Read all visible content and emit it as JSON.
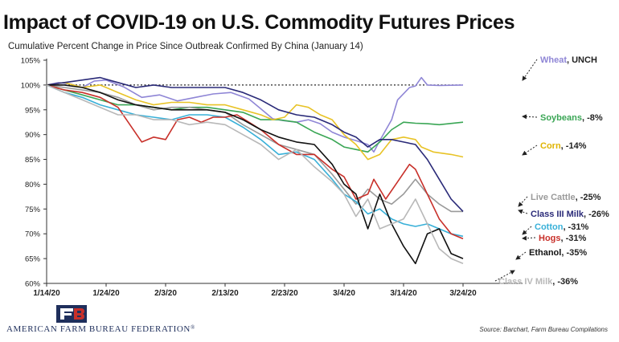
{
  "title": "Impact of COVID-19 on U.S. Commodity Futures Prices",
  "subtitle": "Cumulative Percent Change in Price Since Outbreak Confirmed By China (January 14)",
  "source": "Source: Barchart, Farm Bureau Compilations",
  "organization": "AMERICAN FARM BUREAU FEDERATION",
  "org_mark": "®",
  "logo_text": "FB",
  "chart_data": {
    "type": "line",
    "title": "Impact of COVID-19 on U.S. Commodity Futures Prices",
    "subtitle": "Cumulative Percent Change in Price Since Outbreak Confirmed By China (January 14)",
    "x_ticks": [
      "1/14/20",
      "1/24/20",
      "2/3/20",
      "2/13/20",
      "2/23/20",
      "3/4/20",
      "3/14/20",
      "3/24/20"
    ],
    "x_range_days": [
      0,
      80
    ],
    "y_ticks": [
      "60%",
      "65%",
      "70%",
      "75%",
      "80%",
      "85%",
      "90%",
      "95%",
      "100%",
      "105%"
    ],
    "ylim": [
      60,
      105
    ],
    "reference_line": 100,
    "grid": false,
    "series": [
      {
        "name": "Wheat",
        "label_value": "UNCH",
        "color": "#8f86d6",
        "points": [
          [
            0,
            100
          ],
          [
            2,
            100.5
          ],
          [
            4,
            100.2
          ],
          [
            6,
            99.5
          ],
          [
            8,
            100.8
          ],
          [
            10,
            101
          ],
          [
            13,
            99.6
          ],
          [
            16,
            97.5
          ],
          [
            19,
            98
          ],
          [
            22,
            96.8
          ],
          [
            25,
            97.5
          ],
          [
            28,
            98.2
          ],
          [
            31,
            98.5
          ],
          [
            34,
            97.2
          ],
          [
            36,
            95.2
          ],
          [
            38,
            93.2
          ],
          [
            40,
            92.8
          ],
          [
            42,
            92.5
          ],
          [
            44,
            93
          ],
          [
            46,
            92.2
          ],
          [
            48,
            90.5
          ],
          [
            50,
            89.5
          ],
          [
            52,
            88.8
          ],
          [
            54,
            88
          ],
          [
            55,
            86.5
          ],
          [
            56,
            88.8
          ],
          [
            58,
            93
          ],
          [
            59,
            97
          ],
          [
            61,
            99.5
          ],
          [
            62,
            99.8
          ],
          [
            63,
            101.5
          ],
          [
            64,
            100
          ],
          [
            66,
            99.9
          ],
          [
            70,
            100
          ]
        ]
      },
      {
        "name": "Soybeans",
        "label_value": "-8%",
        "color": "#3aa655",
        "points": [
          [
            0,
            100
          ],
          [
            3,
            99
          ],
          [
            6,
            98
          ],
          [
            9,
            97
          ],
          [
            12,
            96
          ],
          [
            15,
            96
          ],
          [
            18,
            95.5
          ],
          [
            21,
            95
          ],
          [
            24,
            95.5
          ],
          [
            27,
            95.5
          ],
          [
            30,
            95
          ],
          [
            33,
            94.5
          ],
          [
            36,
            93
          ],
          [
            39,
            93
          ],
          [
            42,
            92.5
          ],
          [
            45,
            90.5
          ],
          [
            48,
            89
          ],
          [
            50,
            87.5
          ],
          [
            52,
            87
          ],
          [
            54,
            86.5
          ],
          [
            56,
            88.5
          ],
          [
            58,
            91
          ],
          [
            60,
            92.5
          ],
          [
            62,
            92.3
          ],
          [
            64,
            92.2
          ],
          [
            66,
            92
          ],
          [
            70,
            92.5
          ]
        ]
      },
      {
        "name": "Corn",
        "label_value": "-14%",
        "color": "#e8c326",
        "points": [
          [
            0,
            100
          ],
          [
            3,
            100.5
          ],
          [
            6,
            99.5
          ],
          [
            9,
            100
          ],
          [
            12,
            98.5
          ],
          [
            15,
            97
          ],
          [
            18,
            96
          ],
          [
            21,
            96.5
          ],
          [
            24,
            96.5
          ],
          [
            27,
            96
          ],
          [
            30,
            96
          ],
          [
            33,
            95
          ],
          [
            36,
            94
          ],
          [
            38,
            93
          ],
          [
            40,
            93.5
          ],
          [
            42,
            96
          ],
          [
            44,
            95.5
          ],
          [
            46,
            94
          ],
          [
            48,
            93
          ],
          [
            50,
            90
          ],
          [
            52,
            88
          ],
          [
            54,
            85
          ],
          [
            56,
            86
          ],
          [
            58,
            89
          ],
          [
            60,
            89.5
          ],
          [
            62,
            89
          ],
          [
            63,
            87.5
          ],
          [
            65,
            86.5
          ],
          [
            68,
            86
          ],
          [
            70,
            85.5
          ]
        ]
      },
      {
        "name": "Live Cattle",
        "label_value": "-25%",
        "color": "#9a9a9a",
        "points": [
          [
            0,
            100
          ],
          [
            3,
            99.5
          ],
          [
            6,
            99
          ],
          [
            9,
            98.5
          ],
          [
            12,
            97.5
          ],
          [
            15,
            96
          ],
          [
            18,
            95
          ],
          [
            21,
            95.5
          ],
          [
            24,
            95.5
          ],
          [
            27,
            95
          ],
          [
            30,
            94.5
          ],
          [
            33,
            92
          ],
          [
            36,
            90
          ],
          [
            39,
            88
          ],
          [
            42,
            87
          ],
          [
            45,
            86
          ],
          [
            48,
            82
          ],
          [
            50,
            79
          ],
          [
            52,
            76
          ],
          [
            54,
            79
          ],
          [
            56,
            77
          ],
          [
            58,
            76
          ],
          [
            60,
            78
          ],
          [
            62,
            81
          ],
          [
            64,
            78
          ],
          [
            66,
            76
          ],
          [
            68,
            74.5
          ],
          [
            70,
            74.5
          ]
        ]
      },
      {
        "name": "Class III Milk",
        "label_value": "-26%",
        "color": "#2a2a78",
        "points": [
          [
            0,
            100
          ],
          [
            3,
            100.5
          ],
          [
            6,
            101
          ],
          [
            9,
            101.5
          ],
          [
            12,
            100.5
          ],
          [
            15,
            99.5
          ],
          [
            18,
            100
          ],
          [
            21,
            99.5
          ],
          [
            24,
            99.5
          ],
          [
            27,
            99.5
          ],
          [
            30,
            99.5
          ],
          [
            33,
            98.5
          ],
          [
            36,
            97
          ],
          [
            39,
            95
          ],
          [
            42,
            94
          ],
          [
            45,
            93.5
          ],
          [
            48,
            92
          ],
          [
            50,
            90.5
          ],
          [
            52,
            89.5
          ],
          [
            54,
            87.5
          ],
          [
            56,
            89
          ],
          [
            58,
            89
          ],
          [
            60,
            88.5
          ],
          [
            62,
            88
          ],
          [
            64,
            85
          ],
          [
            66,
            81
          ],
          [
            68,
            77
          ],
          [
            70,
            74.5
          ]
        ]
      },
      {
        "name": "Cotton",
        "label_value": "-31%",
        "color": "#38b0d8",
        "points": [
          [
            0,
            100
          ],
          [
            3,
            98.5
          ],
          [
            6,
            97.5
          ],
          [
            9,
            96
          ],
          [
            12,
            95
          ],
          [
            15,
            94
          ],
          [
            18,
            93.5
          ],
          [
            21,
            93
          ],
          [
            24,
            94
          ],
          [
            27,
            94
          ],
          [
            30,
            93.5
          ],
          [
            33,
            91.5
          ],
          [
            36,
            89
          ],
          [
            39,
            86
          ],
          [
            42,
            86.5
          ],
          [
            45,
            85
          ],
          [
            48,
            81
          ],
          [
            50,
            78
          ],
          [
            52,
            76.5
          ],
          [
            54,
            74
          ],
          [
            56,
            75
          ],
          [
            58,
            73
          ],
          [
            60,
            72
          ],
          [
            62,
            71.5
          ],
          [
            64,
            72
          ],
          [
            66,
            71
          ],
          [
            68,
            70
          ],
          [
            70,
            69.5
          ]
        ]
      },
      {
        "name": "Hogs",
        "label_value": "-31%",
        "color": "#c8302a",
        "points": [
          [
            0,
            100
          ],
          [
            3,
            99
          ],
          [
            6,
            98.5
          ],
          [
            9,
            97.5
          ],
          [
            12,
            95.5
          ],
          [
            14,
            92
          ],
          [
            16,
            88.5
          ],
          [
            18,
            89.5
          ],
          [
            20,
            89
          ],
          [
            22,
            93
          ],
          [
            24,
            93.5
          ],
          [
            26,
            92.5
          ],
          [
            28,
            93.5
          ],
          [
            30,
            93.5
          ],
          [
            32,
            94
          ],
          [
            34,
            92.5
          ],
          [
            36,
            91
          ],
          [
            39,
            88
          ],
          [
            42,
            86
          ],
          [
            45,
            86
          ],
          [
            48,
            83
          ],
          [
            50,
            81.5
          ],
          [
            52,
            77
          ],
          [
            54,
            78
          ],
          [
            55,
            81
          ],
          [
            57,
            77
          ],
          [
            59,
            80.5
          ],
          [
            61,
            84
          ],
          [
            62,
            83
          ],
          [
            64,
            78
          ],
          [
            66,
            73
          ],
          [
            68,
            70
          ],
          [
            70,
            69
          ]
        ]
      },
      {
        "name": "Ethanol",
        "label_value": "-35%",
        "color": "#111111",
        "points": [
          [
            0,
            100
          ],
          [
            3,
            100
          ],
          [
            6,
            99.5
          ],
          [
            9,
            98.5
          ],
          [
            12,
            97
          ],
          [
            15,
            96
          ],
          [
            18,
            95.5
          ],
          [
            21,
            95
          ],
          [
            24,
            95
          ],
          [
            27,
            95
          ],
          [
            30,
            94.5
          ],
          [
            33,
            93
          ],
          [
            36,
            91
          ],
          [
            39,
            89.5
          ],
          [
            42,
            88.5
          ],
          [
            45,
            88
          ],
          [
            48,
            84
          ],
          [
            50,
            80
          ],
          [
            52,
            78
          ],
          [
            54,
            71
          ],
          [
            56,
            78
          ],
          [
            58,
            72
          ],
          [
            60,
            67.5
          ],
          [
            62,
            64
          ],
          [
            64,
            70
          ],
          [
            66,
            71
          ],
          [
            68,
            66
          ],
          [
            70,
            65
          ]
        ]
      },
      {
        "name": "Class IV Milk",
        "label_value": "-36%",
        "color": "#b8b8b8",
        "points": [
          [
            0,
            100
          ],
          [
            3,
            98.5
          ],
          [
            6,
            97
          ],
          [
            9,
            95.5
          ],
          [
            12,
            94
          ],
          [
            15,
            94
          ],
          [
            18,
            93
          ],
          [
            21,
            93
          ],
          [
            24,
            92
          ],
          [
            27,
            92.5
          ],
          [
            30,
            92
          ],
          [
            33,
            90
          ],
          [
            36,
            88
          ],
          [
            39,
            85
          ],
          [
            42,
            87
          ],
          [
            45,
            83.5
          ],
          [
            48,
            80.5
          ],
          [
            50,
            78
          ],
          [
            52,
            73.5
          ],
          [
            54,
            77
          ],
          [
            56,
            71
          ],
          [
            58,
            72
          ],
          [
            60,
            73
          ],
          [
            62,
            77
          ],
          [
            64,
            72
          ],
          [
            66,
            67
          ],
          [
            68,
            65
          ],
          [
            70,
            64
          ]
        ]
      }
    ]
  }
}
